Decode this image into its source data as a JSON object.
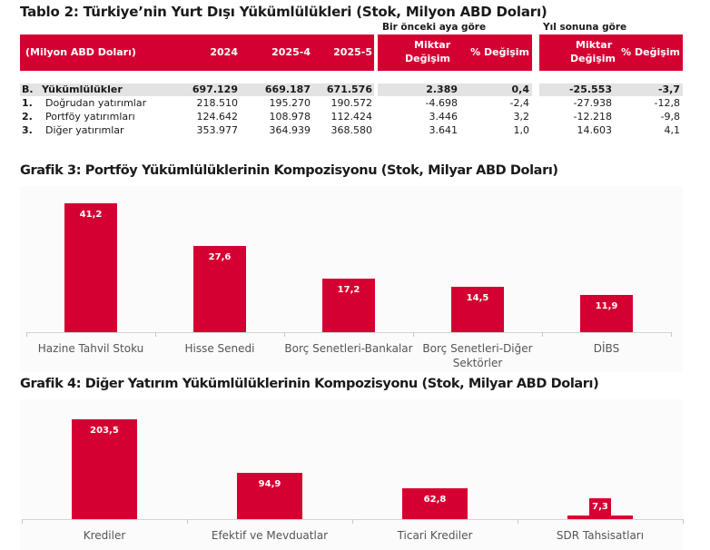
{
  "table": {
    "title": "Tablo 2: Türkiye’nin Yurt Dışı Yükümlülükleri (Stok, Milyon ABD Doları)",
    "group_labels": {
      "monthly": "Bir önceki aya göre",
      "yearly": "Yıl sonuna göre"
    },
    "headers": {
      "unit": "(Milyon ABD Doları)",
      "c2024": "2024",
      "c2025_4": "2025-4",
      "c2025_5": "2025-5",
      "amount_line1": "Miktar",
      "amount_line2": "Değişim",
      "pct": "% Değişim"
    },
    "rows": [
      {
        "num": "B.",
        "label": "Yükümlülükler",
        "v2024": "697.129",
        "v2025_4": "669.187",
        "v2025_5": "671.576",
        "m_amt": "2.389",
        "m_pct": "0,4",
        "y_amt": "-25.553",
        "y_pct": "-3,7"
      },
      {
        "num": "1.",
        "label": "Doğrudan yatırımlar",
        "v2024": "218.510",
        "v2025_4": "195.270",
        "v2025_5": "190.572",
        "m_amt": "-4.698",
        "m_pct": "-2,4",
        "y_amt": "-27.938",
        "y_pct": "-12,8"
      },
      {
        "num": "2.",
        "label": "Portföy yatırımları",
        "v2024": "124.642",
        "v2025_4": "108.978",
        "v2025_5": "112.424",
        "m_amt": "3.446",
        "m_pct": "3,2",
        "y_amt": "-12.218",
        "y_pct": "-9,8"
      },
      {
        "num": "3.",
        "label": "Diğer yatırımlar",
        "v2024": "353.977",
        "v2025_4": "364.939",
        "v2025_5": "368.580",
        "m_amt": "3.641",
        "m_pct": "1,0",
        "y_amt": "14.603",
        "y_pct": "4,1"
      }
    ]
  },
  "colors": {
    "accent": "#d50032",
    "shade": "#e3e3e3",
    "axis": "#d4d4d4",
    "label": "#555555"
  },
  "chart_data": [
    {
      "type": "bar",
      "title": "Grafik 3: Portföy Yükümlülüklerinin Kompozisyonu (Stok, Milyar ABD Doları)",
      "categories": [
        "Hazine Tahvil Stoku",
        "Hisse Senedi",
        "Borç Senetleri-Bankalar",
        "Borç Senetleri-Diğer Sektörler",
        "DİBS"
      ],
      "category_lines": [
        [
          "Hazine Tahvil Stoku"
        ],
        [
          "Hisse Senedi"
        ],
        [
          "Borç Senetleri-Bankalar"
        ],
        [
          "Borç Senetleri-Diğer",
          "Sektörler"
        ],
        [
          "DİBS"
        ]
      ],
      "values": [
        41.2,
        27.6,
        17.2,
        14.5,
        11.9
      ],
      "labels": [
        "41,2",
        "27,6",
        "17,2",
        "14,5",
        "11,9"
      ],
      "xlabel": "",
      "ylabel": "",
      "grid": false,
      "legend": "none"
    },
    {
      "type": "bar",
      "title": "Grafik 4: Diğer Yatırım Yükümlülüklerinin Kompozisyonu (Stok, Milyar ABD Doları)",
      "categories": [
        "Krediler",
        "Efektif ve Mevduatlar",
        "Ticari Krediler",
        "SDR Tahsisatları"
      ],
      "category_lines": [
        [
          "Krediler"
        ],
        [
          "Efektif ve Mevduatlar"
        ],
        [
          "Ticari Krediler"
        ],
        [
          "SDR Tahsisatları"
        ]
      ],
      "values": [
        203.5,
        94.9,
        62.8,
        7.3
      ],
      "labels": [
        "203,5",
        "94,9",
        "62,8",
        "7,3"
      ],
      "xlabel": "",
      "ylabel": "",
      "grid": false,
      "legend": "none"
    }
  ]
}
